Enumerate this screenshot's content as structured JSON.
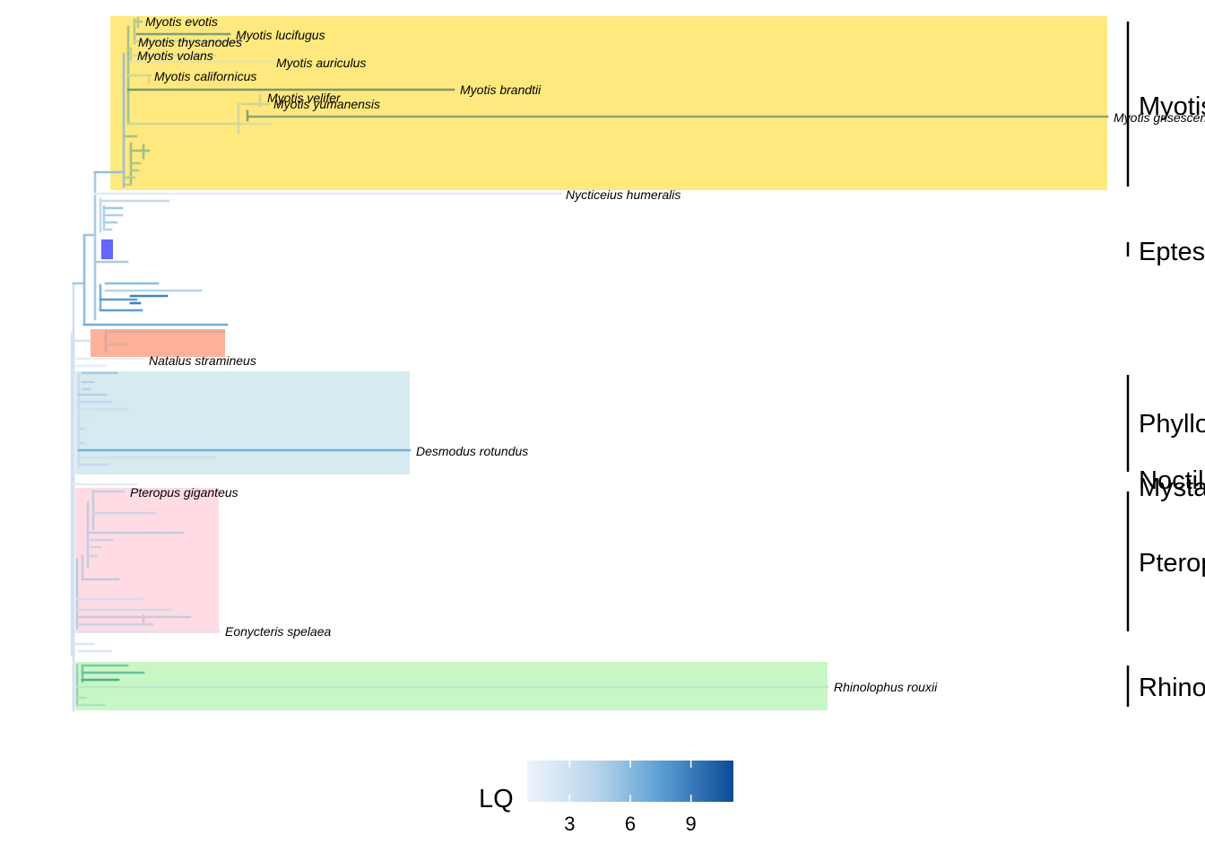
{
  "tip_labels": {
    "myotis_evotis": "Myotis evotis",
    "myotis_lucifugus": "Myotis lucifugus",
    "myotis_thysanodes": "Myotis thysanodes",
    "myotis_volans": "Myotis volans",
    "myotis_auriculus": "Myotis auriculus",
    "myotis_californicus": "Myotis californicus",
    "myotis_brandtii": "Myotis brandtii",
    "myotis_velifer": "Myotis velifer",
    "myotis_yumanensis": "Myotis yumanensis",
    "myotis_grisescens": "Myotis grisescens",
    "nycticeius_humeralis": "Nycticeius humeralis",
    "natalus_stramineus": "Natalus stramineus",
    "desmodus_rotundus": "Desmodus rotundus",
    "pteropus_giganteus": "Pteropus giganteus",
    "eonycteris_spelaea": "Eonycteris spelaea",
    "rhinolophus_rouxii": "Rhinolophus rouxii"
  },
  "clade_labels": {
    "myotis": "Myotis",
    "eptesicus": "Eptesicus",
    "phyllostomidae": "Phyllostomidae",
    "noctilionidae": "Noctilionidae",
    "mystacinidae": "Mystacinidae",
    "pteropodidae": "Pteropodidae",
    "rhinolophidae": "Rhinolophidae"
  },
  "clade_highlight_colors": {
    "myotis": "#ffe97f",
    "natalidae": "#ffb199",
    "phyllostomidae": "#d6ebf0",
    "pteropodidae": "#ffdce3",
    "rhinolophidae": "#c8f7c5"
  },
  "colors": {
    "lq_low": "#eef4fc",
    "lq_high": "#0b4a98",
    "selected_node_box": "#4a4aff"
  },
  "legend": {
    "title": "LQ",
    "ticks": [
      {
        "value": 3,
        "label": "3"
      },
      {
        "value": 6,
        "label": "6"
      },
      {
        "value": 9,
        "label": "9"
      }
    ],
    "min": 0.9,
    "max": 11.1
  }
}
